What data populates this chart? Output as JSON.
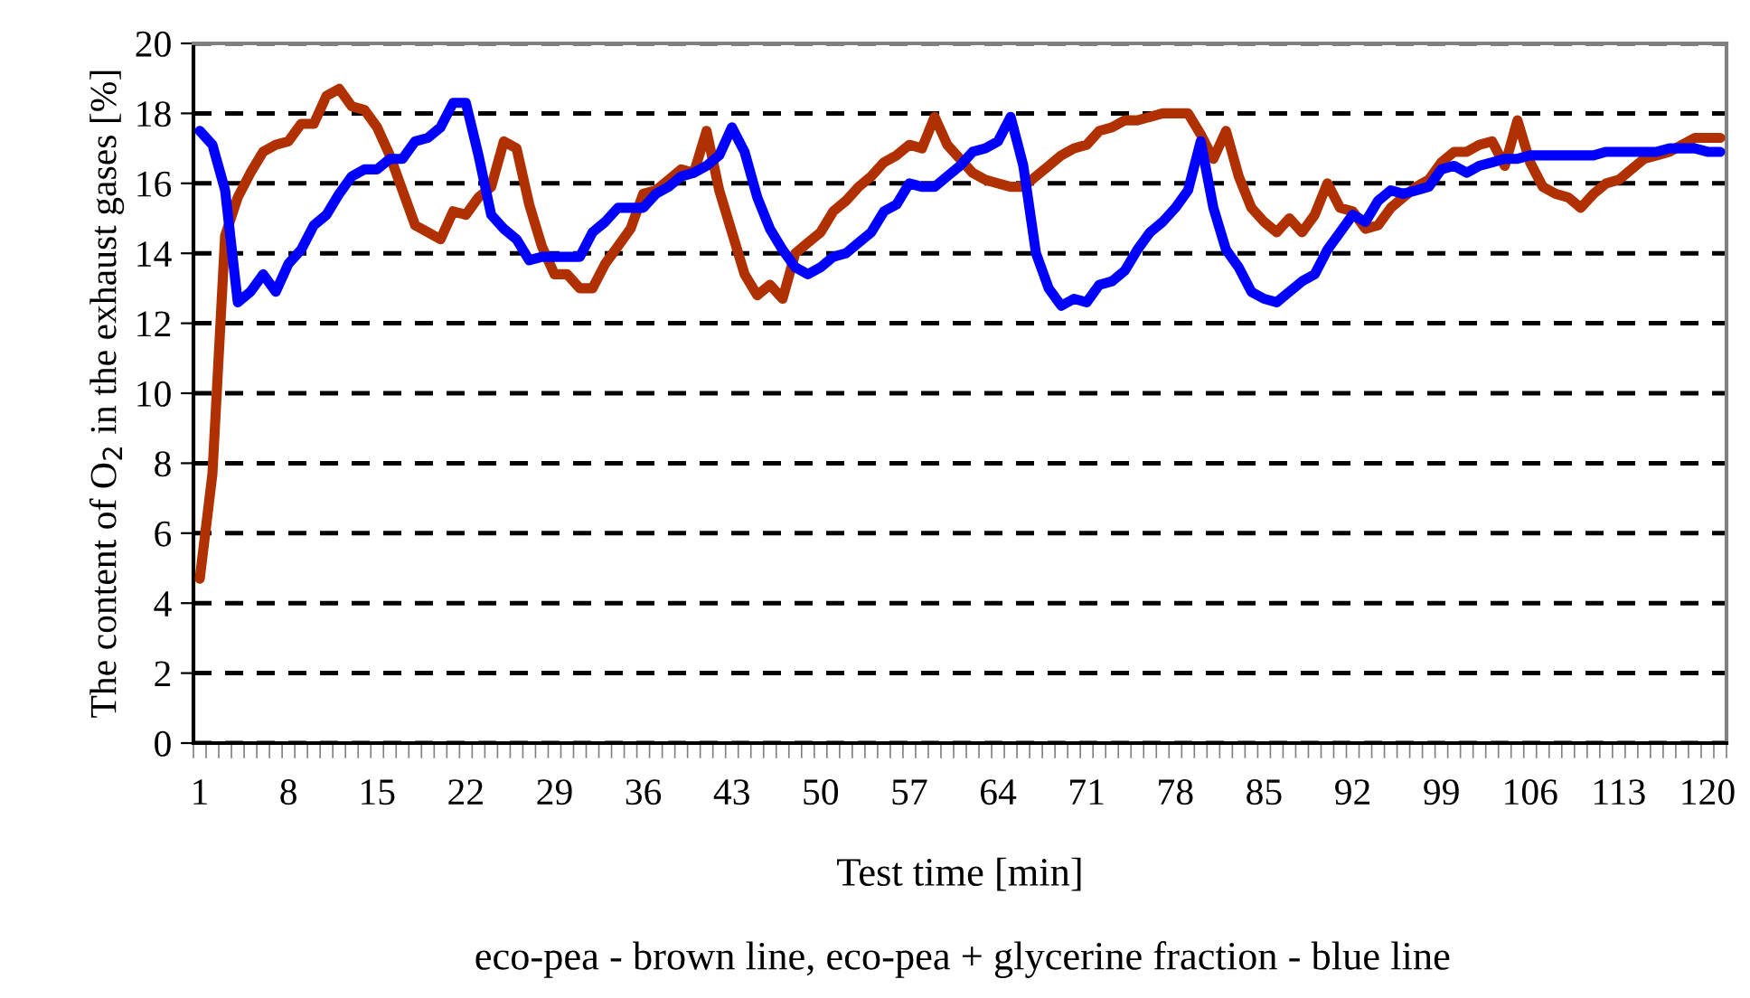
{
  "chart_data": {
    "type": "line",
    "xlabel": "Test time [min]",
    "ylabel": "The content of O$_{2}$ in the exhaust gases [%]",
    "annotations": [
      "eco-pea - brown line, eco-pea + glycerine fraction - blue line"
    ],
    "categories": [
      "1",
      null,
      null,
      null,
      null,
      null,
      null,
      "8",
      null,
      null,
      null,
      null,
      null,
      null,
      "15",
      null,
      null,
      null,
      null,
      null,
      null,
      "22",
      null,
      null,
      null,
      null,
      null,
      null,
      "29",
      null,
      null,
      null,
      null,
      null,
      null,
      "36",
      null,
      null,
      null,
      null,
      null,
      null,
      "43",
      null,
      null,
      null,
      null,
      null,
      null,
      "50",
      null,
      null,
      null,
      null,
      null,
      null,
      "57",
      null,
      null,
      null,
      null,
      null,
      null,
      "64",
      null,
      null,
      null,
      null,
      null,
      null,
      "71",
      null,
      null,
      null,
      null,
      null,
      null,
      "78",
      null,
      null,
      null,
      null,
      null,
      null,
      "85",
      null,
      null,
      null,
      null,
      null,
      null,
      "92",
      null,
      null,
      null,
      null,
      null,
      null,
      "99",
      null,
      null,
      null,
      null,
      null,
      null,
      "106",
      null,
      null,
      null,
      null,
      null,
      null,
      "113",
      null,
      null,
      null,
      null,
      null,
      null,
      "120",
      null
    ],
    "series": [
      {
        "color": "#b03000",
        "values": [
          4.7,
          7.7,
          14.5,
          15.6,
          16.3,
          16.9,
          17.1,
          17.2,
          17.7,
          17.7,
          18.5,
          18.7,
          18.2,
          18.1,
          17.6,
          16.8,
          15.8,
          14.8,
          14.6,
          14.4,
          15.2,
          15.1,
          15.6,
          15.9,
          17.2,
          17.0,
          15.4,
          14.2,
          13.4,
          13.4,
          13.0,
          13.0,
          13.7,
          14.2,
          14.7,
          15.7,
          15.8,
          16.1,
          16.4,
          16.3,
          17.5,
          15.8,
          14.6,
          13.4,
          12.8,
          13.1,
          12.7,
          14.0,
          14.3,
          14.6,
          15.2,
          15.5,
          15.9,
          16.2,
          16.6,
          16.8,
          17.1,
          17.0,
          17.9,
          17.1,
          16.7,
          16.3,
          16.1,
          16.0,
          15.9,
          15.9,
          16.2,
          16.5,
          16.8,
          17.0,
          17.1,
          17.5,
          17.6,
          17.8,
          17.8,
          17.9,
          18.0,
          18.0,
          18.0,
          17.4,
          16.7,
          17.5,
          16.2,
          15.3,
          14.9,
          14.6,
          15.0,
          14.6,
          15.1,
          16.0,
          15.3,
          15.2,
          14.7,
          14.8,
          15.3,
          15.6,
          15.9,
          16.1,
          16.6,
          16.9,
          16.9,
          17.1,
          17.2,
          16.5,
          17.8,
          16.6,
          15.9,
          15.7,
          15.6,
          15.3,
          15.7,
          16.0,
          16.1,
          16.4,
          16.7,
          16.8,
          16.9,
          17.1,
          17.3,
          17.3,
          17.3
        ]
      },
      {
        "color": "#0000ff",
        "values": [
          17.5,
          17.1,
          15.8,
          12.6,
          12.9,
          13.4,
          12.9,
          13.7,
          14.1,
          14.8,
          15.1,
          15.7,
          16.2,
          16.4,
          16.4,
          16.7,
          16.7,
          17.2,
          17.3,
          17.6,
          18.3,
          18.3,
          16.8,
          15.1,
          14.7,
          14.4,
          13.8,
          13.9,
          13.9,
          13.9,
          13.9,
          14.6,
          14.9,
          15.3,
          15.3,
          15.3,
          15.7,
          15.9,
          16.2,
          16.3,
          16.5,
          16.8,
          17.6,
          16.9,
          15.6,
          14.7,
          14.1,
          13.6,
          13.4,
          13.6,
          13.9,
          14.0,
          14.3,
          14.6,
          15.2,
          15.4,
          16.0,
          15.9,
          15.9,
          16.2,
          16.5,
          16.9,
          17.0,
          17.2,
          17.9,
          16.5,
          14.0,
          13.0,
          12.5,
          12.7,
          12.6,
          13.1,
          13.2,
          13.5,
          14.1,
          14.6,
          14.9,
          15.3,
          15.8,
          17.2,
          15.3,
          14.1,
          13.6,
          12.9,
          12.7,
          12.6,
          12.9,
          13.2,
          13.4,
          14.1,
          14.6,
          15.1,
          14.9,
          15.5,
          15.8,
          15.7,
          15.8,
          15.9,
          16.4,
          16.5,
          16.3,
          16.5,
          16.6,
          16.7,
          16.7,
          16.8,
          16.8,
          16.8,
          16.8,
          16.8,
          16.8,
          16.9,
          16.9,
          16.9,
          16.9,
          16.9,
          17.0,
          17.0,
          17.0,
          16.9,
          16.9
        ]
      }
    ],
    "ylim": [
      0,
      20
    ],
    "yticks": [
      0,
      2,
      4,
      6,
      8,
      10,
      12,
      14,
      16,
      18,
      20
    ],
    "grid": "y",
    "line_style": "solid",
    "marker": "none"
  }
}
